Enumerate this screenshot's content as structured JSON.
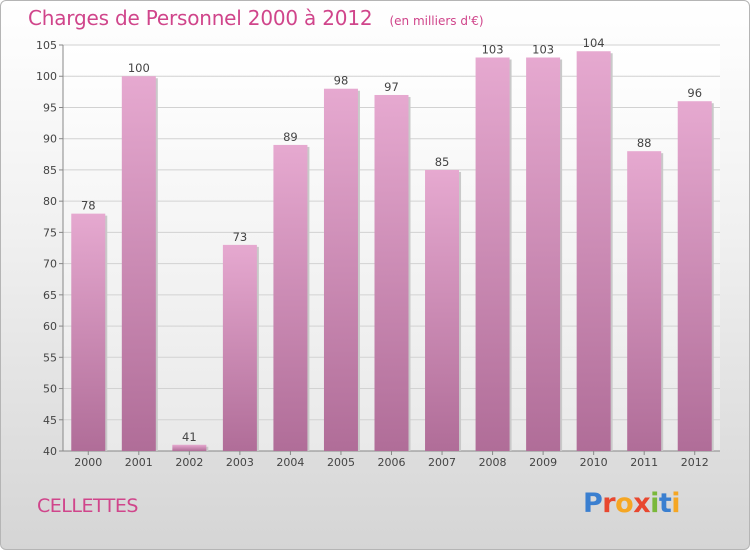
{
  "header": {
    "title": "Charges de Personnel 2000 à 2012",
    "subtitle": "(en milliers d'€)"
  },
  "footer": {
    "place": "CELLETTES",
    "logo_text": "Proxiti",
    "logo_colors": [
      "#3a7fd0",
      "#e8472f",
      "#f5a623",
      "#e8472f",
      "#7ab83a",
      "#3a7fd0",
      "#f5a623"
    ]
  },
  "chart_data": {
    "type": "bar",
    "categories": [
      "2000",
      "2001",
      "2002",
      "2003",
      "2004",
      "2005",
      "2006",
      "2007",
      "2008",
      "2009",
      "2010",
      "2011",
      "2012"
    ],
    "values": [
      78,
      100,
      41,
      73,
      89,
      98,
      97,
      85,
      103,
      103,
      104,
      88,
      96
    ],
    "ylim": [
      40,
      105
    ],
    "yticks": [
      40,
      45,
      50,
      55,
      60,
      65,
      70,
      75,
      80,
      85,
      90,
      95,
      100,
      105
    ],
    "grid": true,
    "bar_color": "#dc9ec4"
  }
}
